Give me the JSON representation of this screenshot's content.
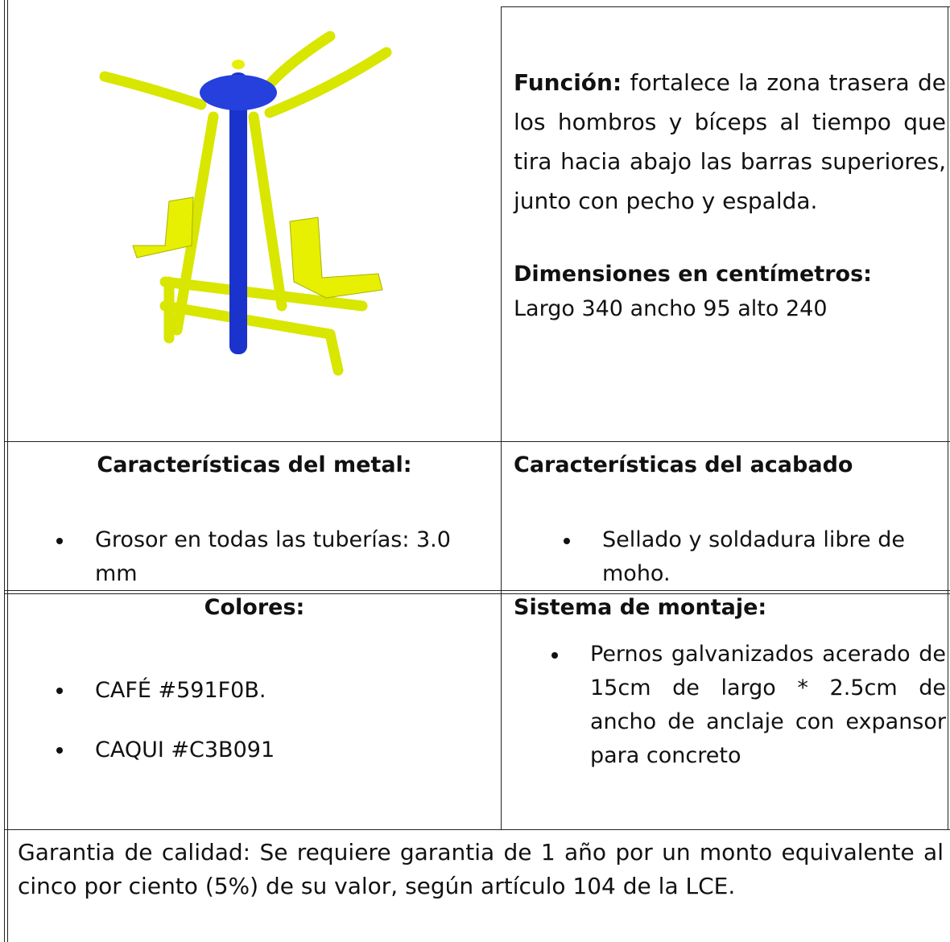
{
  "function": {
    "label": "Función:",
    "text": "fortalece la zona trasera de los hombros y bíceps al tiempo que tira hacia abajo las barras superiores, junto con pecho y espalda."
  },
  "dimensions": {
    "label": "Dimensiones en centímetros:",
    "text": "Largo 340 ancho 95 alto 240"
  },
  "metal": {
    "title": "Características del metal:",
    "items": [
      "Grosor en todas las tuberías: 3.0 mm"
    ]
  },
  "finish": {
    "title": "Características del acabado",
    "items": [
      "Sellado y soldadura libre de moho."
    ]
  },
  "colors": {
    "title": "Colores:",
    "items": [
      "CAFÉ #591F0B.",
      "CAQUI #C3B091"
    ]
  },
  "mounting": {
    "title": "Sistema de montaje:",
    "items": [
      "Pernos galvanizados acerado de 15cm de largo * 2.5cm de ancho de anclaje con expansor para concreto"
    ]
  },
  "warranty": "Garantia de calidad: Se requiere garantia de 1 año por un monto equivalente al cinco por ciento (5%) de su valor, según artículo 104 de la LCE."
}
